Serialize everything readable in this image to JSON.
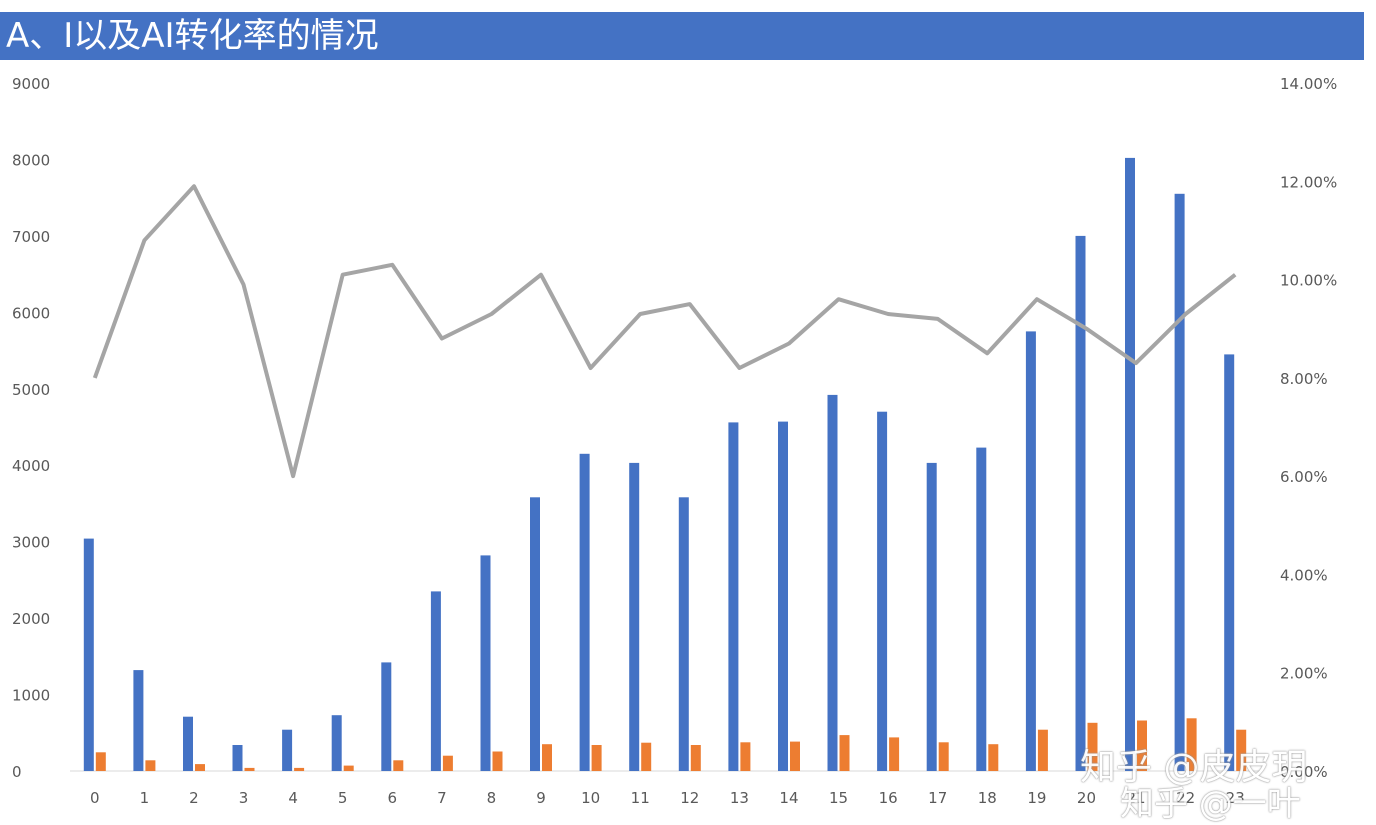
{
  "title": "A、I以及AI转化率的情况",
  "colors": {
    "title_bg": "#4472c4",
    "series_a": "#4472c4",
    "series_i": "#ed7d31",
    "rate_line": "#a5a5a5",
    "axis_text": "#595959",
    "axis_line": "#d9d9d9"
  },
  "chart_data": {
    "type": "bar",
    "title": "A、I以及AI转化率的情况",
    "categories": [
      "0",
      "1",
      "2",
      "3",
      "4",
      "5",
      "6",
      "7",
      "8",
      "9",
      "10",
      "11",
      "12",
      "13",
      "14",
      "15",
      "16",
      "17",
      "18",
      "19",
      "20",
      "21",
      "22",
      "23"
    ],
    "series": [
      {
        "kind": "bar",
        "axis": "left",
        "values": [
          3040,
          1320,
          710,
          340,
          540,
          730,
          1420,
          2350,
          2820,
          3580,
          4150,
          4030,
          3580,
          4560,
          4570,
          4920,
          4700,
          4030,
          4230,
          5750,
          7000,
          8020,
          7550,
          5450
        ]
      },
      {
        "kind": "bar",
        "axis": "left",
        "values": [
          245,
          140,
          90,
          40,
          40,
          70,
          140,
          200,
          255,
          350,
          340,
          370,
          340,
          375,
          385,
          470,
          440,
          375,
          350,
          540,
          630,
          660,
          690,
          540
        ]
      },
      {
        "kind": "line",
        "axis": "right",
        "values": [
          0.08,
          0.108,
          0.119,
          0.099,
          0.06,
          0.101,
          0.103,
          0.088,
          0.093,
          0.101,
          0.082,
          0.093,
          0.095,
          0.082,
          0.087,
          0.096,
          0.093,
          0.092,
          0.085,
          0.096,
          0.09,
          0.083,
          0.093,
          0.101
        ]
      }
    ],
    "y_left": {
      "min": 0,
      "max": 9000,
      "ticks": [
        "0",
        "1000",
        "2000",
        "3000",
        "4000",
        "5000",
        "6000",
        "7000",
        "8000",
        "9000"
      ]
    },
    "y_right": {
      "min": 0,
      "max": 0.14,
      "ticks": [
        "0.00%",
        "2.00%",
        "4.00%",
        "6.00%",
        "8.00%",
        "10.00%",
        "12.00%",
        "14.00%"
      ]
    },
    "x_tick_labels": [
      "0",
      "1",
      "2",
      "3",
      "4",
      "5",
      "6",
      "7",
      "8",
      "9",
      "10",
      "11",
      "12",
      "13",
      "14",
      "15",
      "16",
      "17",
      "18",
      "19",
      "20",
      "21",
      "22",
      "23"
    ],
    "grid": false,
    "legend": "none"
  },
  "watermarks": [
    "知乎 @皮皮玥",
    "知乎 @一叶"
  ]
}
